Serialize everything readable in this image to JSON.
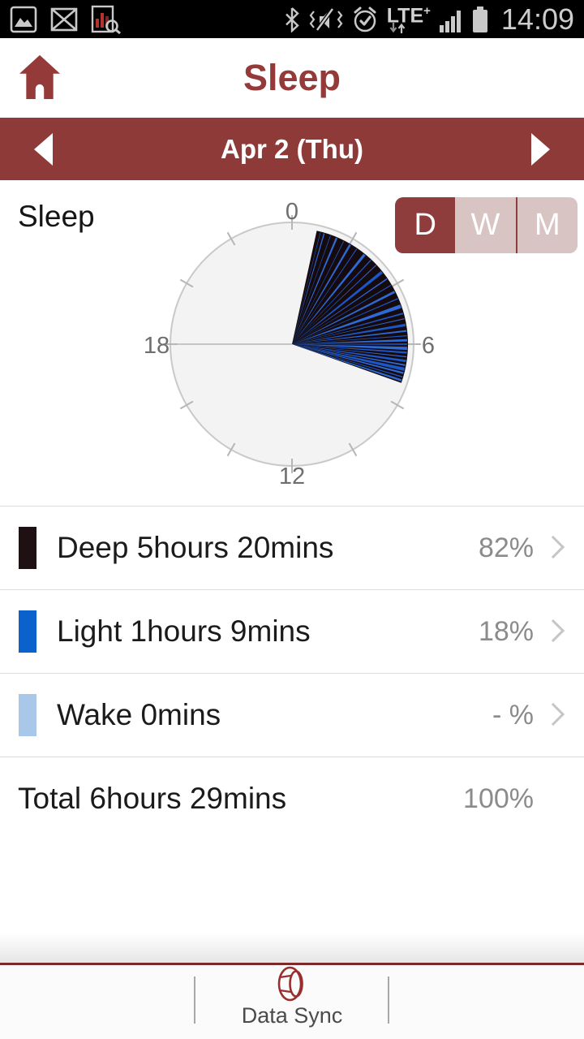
{
  "status_bar": {
    "time": "14:09",
    "network_type": "LTE",
    "network_suffix": "+"
  },
  "header": {
    "title": "Sleep"
  },
  "date_nav": {
    "label": "Apr 2 (Thu)"
  },
  "chart_section": {
    "label": "Sleep",
    "range_toggle": {
      "options": [
        "D",
        "W",
        "M"
      ],
      "selected": "D"
    }
  },
  "legend": {
    "rows": [
      {
        "name": "Deep",
        "label": "Deep 5hours 20mins",
        "percent": "82%",
        "color": "#1e1013"
      },
      {
        "name": "Light",
        "label": "Light 1hours 9mins",
        "percent": "18%",
        "color": "#0b62cd"
      },
      {
        "name": "Wake",
        "label": "Wake 0mins",
        "percent": "- %",
        "color": "#a9c8e9"
      }
    ],
    "total": {
      "label": "Total 6hours 29mins",
      "percent": "100%"
    }
  },
  "bottom_bar": {
    "sync_label": "Data Sync"
  },
  "colors": {
    "accent_maroon": "#8e3a38",
    "toggle_inactive": "#d9c4c4",
    "footer_line": "#7c2b2a"
  },
  "chart_data": {
    "type": "polar-clock",
    "title": "Sleep",
    "dial": {
      "hours": 24,
      "labels": [
        "0",
        "6",
        "12",
        "18"
      ],
      "ticks": 12,
      "face_color": "#f4f3f3",
      "ring_color": "#c9c9c9",
      "tick_color": "#b6b6b6",
      "label_color": "#6e6e6e"
    },
    "sleep_window": {
      "start_hour": 0.82,
      "end_hour": 7.3
    },
    "colors": {
      "deep": "#150a0d",
      "light_streaks": [
        "#1a57c7",
        "#2e6ad5"
      ]
    },
    "light_streaks": [
      [
        0.95,
        0.3
      ],
      [
        1.08,
        0.6
      ],
      [
        1.3,
        0.35
      ],
      [
        1.52,
        0.95
      ],
      [
        1.78,
        0.4
      ],
      [
        2.02,
        1.1
      ],
      [
        2.28,
        0.5
      ],
      [
        2.6,
        1.35
      ],
      [
        2.88,
        0.55
      ],
      [
        3.12,
        0.4
      ],
      [
        3.42,
        1.6
      ],
      [
        3.7,
        0.65
      ],
      [
        3.95,
        0.45
      ],
      [
        4.2,
        1.25
      ],
      [
        4.45,
        0.55
      ],
      [
        4.72,
        1.9
      ],
      [
        4.97,
        0.75
      ],
      [
        5.15,
        0.5
      ],
      [
        5.36,
        1.35
      ],
      [
        5.56,
        0.85
      ],
      [
        5.72,
        0.45
      ],
      [
        5.87,
        1.15
      ],
      [
        6.0,
        0.75
      ],
      [
        6.14,
        1.55
      ],
      [
        6.28,
        0.95
      ],
      [
        6.42,
        0.55
      ],
      [
        6.56,
        1.25
      ],
      [
        6.7,
        0.8
      ],
      [
        6.84,
        1.7
      ],
      [
        6.97,
        0.95
      ],
      [
        7.1,
        0.6
      ],
      [
        7.22,
        1.05
      ]
    ],
    "series": [
      {
        "name": "Deep",
        "duration_label": "5hours 20mins",
        "minutes": 320,
        "percent": 82
      },
      {
        "name": "Light",
        "duration_label": "1hours 9mins",
        "minutes": 69,
        "percent": 18
      },
      {
        "name": "Wake",
        "duration_label": "0mins",
        "minutes": 0,
        "percent": null
      }
    ],
    "total": {
      "duration_label": "6hours 29mins",
      "minutes": 389,
      "percent": 100
    }
  }
}
